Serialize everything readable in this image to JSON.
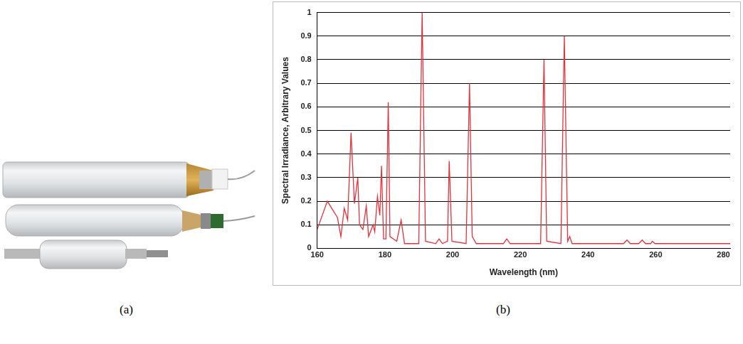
{
  "panel_labels": [
    "(a)",
    "(b)"
  ],
  "chart_data": {
    "type": "line",
    "x_label": "Wavelength (nm)",
    "y_label": "Spectral Irradiance, Arbitrary Values",
    "color": "#e8303a",
    "x": [
      160,
      163,
      166,
      167,
      168,
      169,
      170,
      171,
      172,
      172.5,
      173.5,
      174.5,
      175.2,
      176.5,
      177,
      177.8,
      178.5,
      179,
      179.6,
      180.3,
      181,
      181.5,
      183.5,
      184.8,
      185.8,
      190,
      191,
      192,
      195,
      196,
      197,
      198.5,
      199,
      199.8,
      204,
      205,
      205.8,
      207,
      215,
      216,
      217,
      226,
      227,
      227.8,
      232,
      233,
      234,
      234.6,
      235.3,
      250.5,
      251.5,
      252.5,
      255,
      256,
      257,
      258.5,
      259,
      259.8,
      282
    ],
    "values": [
      0.08,
      0.2,
      0.13,
      0.05,
      0.17,
      0.12,
      0.49,
      0.19,
      0.3,
      0.1,
      0.08,
      0.18,
      0.05,
      0.1,
      0.07,
      0.22,
      0.14,
      0.35,
      0.04,
      0.04,
      0.62,
      0.05,
      0.03,
      0.12,
      0.02,
      0.02,
      1.0,
      0.03,
      0.02,
      0.04,
      0.02,
      0.03,
      0.37,
      0.03,
      0.02,
      0.7,
      0.05,
      0.02,
      0.02,
      0.04,
      0.02,
      0.02,
      0.8,
      0.03,
      0.02,
      0.9,
      0.03,
      0.05,
      0.02,
      0.02,
      0.035,
      0.02,
      0.02,
      0.035,
      0.02,
      0.02,
      0.03,
      0.02,
      0.02
    ],
    "xlim": [
      160,
      282
    ],
    "xticks": [
      160,
      180,
      200,
      220,
      240,
      260,
      280
    ],
    "ylim": [
      0,
      1
    ],
    "yticks": [
      0,
      0.1,
      0.2,
      0.3,
      0.4,
      0.5,
      0.6,
      0.7,
      0.8,
      0.9,
      1
    ],
    "grid": true
  }
}
